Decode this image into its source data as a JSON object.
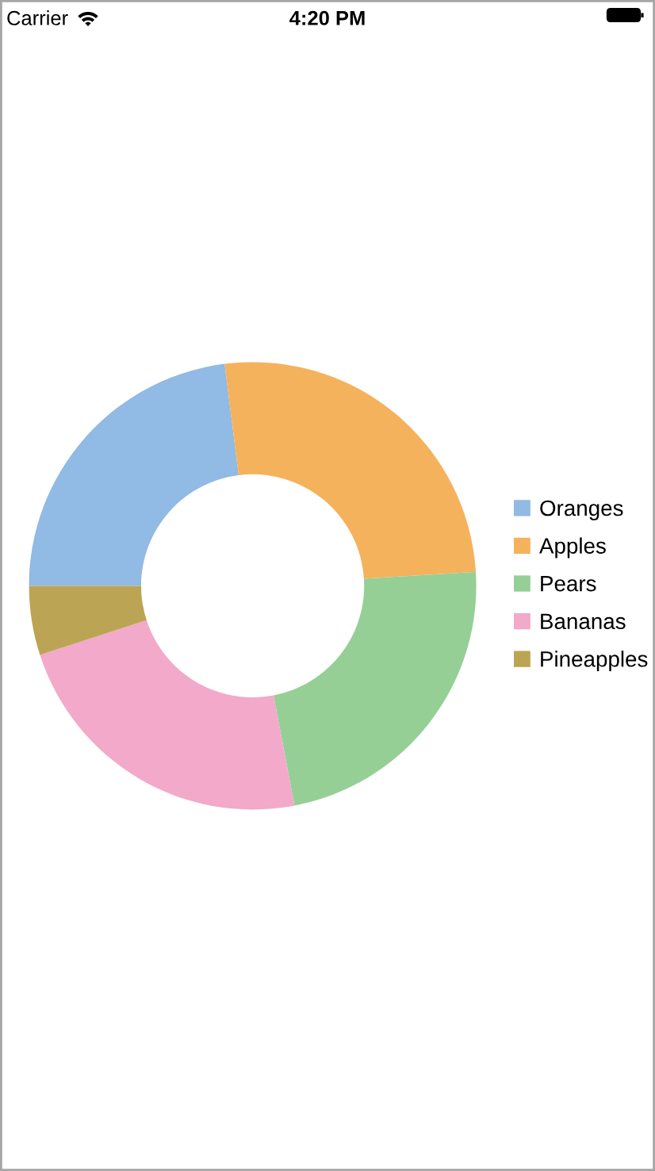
{
  "chart_data": {
    "type": "donut",
    "categories": [
      "Oranges",
      "Apples",
      "Pears",
      "Bananas",
      "Pineapples"
    ],
    "values": [
      23,
      26,
      23,
      23,
      5
    ],
    "colors": [
      "#91bae4",
      "#f5b25c",
      "#96cf96",
      "#f2a9ca",
      "#bba554"
    ],
    "legend": "right",
    "annotations": [
      "Carrier",
      "4:20 PM"
    ]
  }
}
